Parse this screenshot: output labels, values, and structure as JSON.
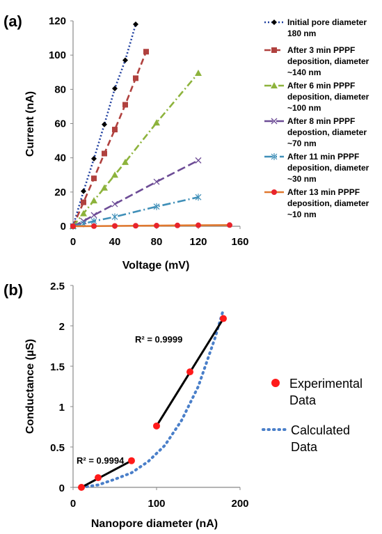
{
  "chart_data": [
    {
      "panel_label": "(a)",
      "type": "scatter",
      "xlabel": "Voltage (mV)",
      "ylabel": "Current  (nA)",
      "xlim": [
        0,
        160
      ],
      "ylim": [
        0,
        120
      ],
      "xticks": [
        0,
        40,
        80,
        120,
        160
      ],
      "yticks": [
        0,
        20,
        40,
        60,
        80,
        100,
        120
      ],
      "legend_position": "right",
      "series": [
        {
          "name": "Initial pore diameter 180 nm",
          "legend_lines": [
            "Initial pore diameter",
            "180 nm"
          ],
          "color": "#1f3f9f",
          "marker": "diamond",
          "dash": "2,3",
          "x": [
            0,
            10,
            20,
            30,
            40,
            50,
            60
          ],
          "y": [
            0,
            20.5,
            39.5,
            59.5,
            80.5,
            97,
            118
          ]
        },
        {
          "name": "After 3 min PPPF deposition, diameter ~140 nm",
          "legend_lines": [
            "After 3 min PPPF",
            "deposition, diameter",
            "~140 nm"
          ],
          "color": "#b0413e",
          "marker": "square",
          "dash": "9,5",
          "x": [
            0,
            10,
            20,
            30,
            40,
            50,
            60,
            70
          ],
          "y": [
            0,
            14,
            28,
            42.5,
            56.5,
            71,
            86.5,
            102
          ]
        },
        {
          "name": "After 6 min PPPF deposition, diameter ~100 nm",
          "legend_lines": [
            "After 6 min PPPF",
            "deposition, diameter",
            "~100 nm"
          ],
          "color": "#8db33c",
          "marker": "triangle",
          "dash": "10,4,2,4",
          "x": [
            0,
            10,
            20,
            30,
            40,
            50,
            80,
            120
          ],
          "y": [
            0,
            7.5,
            15,
            22.5,
            30,
            37.5,
            60.5,
            89.5
          ]
        },
        {
          "name": "After 8 min PPPF depostion, diameter ~70 nm",
          "legend_lines": [
            "After 8 min PPPF",
            "depostion, diameter",
            "~70 nm"
          ],
          "color": "#6d4c96",
          "marker": "x",
          "dash": "12,5",
          "x": [
            0,
            10,
            20,
            40,
            80,
            120
          ],
          "y": [
            0,
            3,
            6.5,
            13,
            26,
            38.5
          ]
        },
        {
          "name": "After 11 min PPPF deposition, diameter ~30 nm",
          "legend_lines": [
            "After 11 min PPPF",
            "deposition, diameter",
            "~30 nm"
          ],
          "color": "#3f8fb8",
          "marker": "asterisk",
          "dash": "12,4,2,4",
          "x": [
            0,
            10,
            20,
            40,
            80,
            120
          ],
          "y": [
            0,
            1.5,
            3,
            5.5,
            11.5,
            17
          ]
        },
        {
          "name": "After 13 min PPPF deposition, diameter ~10 nm",
          "legend_lines": [
            "After 13 min PPPF",
            "deposition, diameter",
            "~10 nm"
          ],
          "color": "#e0782e",
          "marker": "circle",
          "marker_color": "#e8242c",
          "dash": "none",
          "x": [
            0,
            20,
            40,
            60,
            80,
            100,
            120,
            150
          ],
          "y": [
            0,
            0.1,
            0.2,
            0.3,
            0.4,
            0.5,
            0.6,
            0.7
          ]
        }
      ]
    },
    {
      "panel_label": "(b)",
      "type": "scatter",
      "xlabel": "Nanopore diameter (nA)",
      "ylabel": "Conductance (µS)",
      "xlim": [
        0,
        200
      ],
      "ylim": [
        0,
        2.5
      ],
      "xticks": [
        0,
        100,
        200
      ],
      "yticks": [
        0,
        0.5,
        1,
        1.5,
        2,
        2.5
      ],
      "ytick_labels": [
        "0",
        "0.5",
        "1",
        "1.5",
        "2",
        "2.5"
      ],
      "legend_position": "right",
      "legend": [
        {
          "lines": [
            "Experimental",
            "Data"
          ],
          "kind": "marker",
          "color": "#ff1a1a"
        },
        {
          "lines": [
            "Calculated",
            "Data"
          ],
          "kind": "dotted",
          "color": "#4a7fc9"
        }
      ],
      "experimental": {
        "color": "#ff1a1a",
        "x": [
          10,
          30,
          70,
          100,
          140,
          180
        ],
        "y": [
          0.0,
          0.12,
          0.33,
          0.76,
          1.43,
          2.09
        ]
      },
      "calculated": {
        "color": "#4a7fc9",
        "x": [
          10,
          30,
          50,
          70,
          90,
          110,
          130,
          150,
          170,
          180
        ],
        "y": [
          0.0,
          0.03,
          0.1,
          0.18,
          0.32,
          0.52,
          0.83,
          1.25,
          1.85,
          2.2
        ]
      },
      "fits": [
        {
          "label": "R² = 0.9994",
          "x": [
            10,
            70
          ],
          "y": [
            0.0,
            0.33
          ]
        },
        {
          "label": "R² = 0.9999",
          "x": [
            100,
            180
          ],
          "y": [
            0.76,
            2.09
          ]
        }
      ]
    }
  ]
}
